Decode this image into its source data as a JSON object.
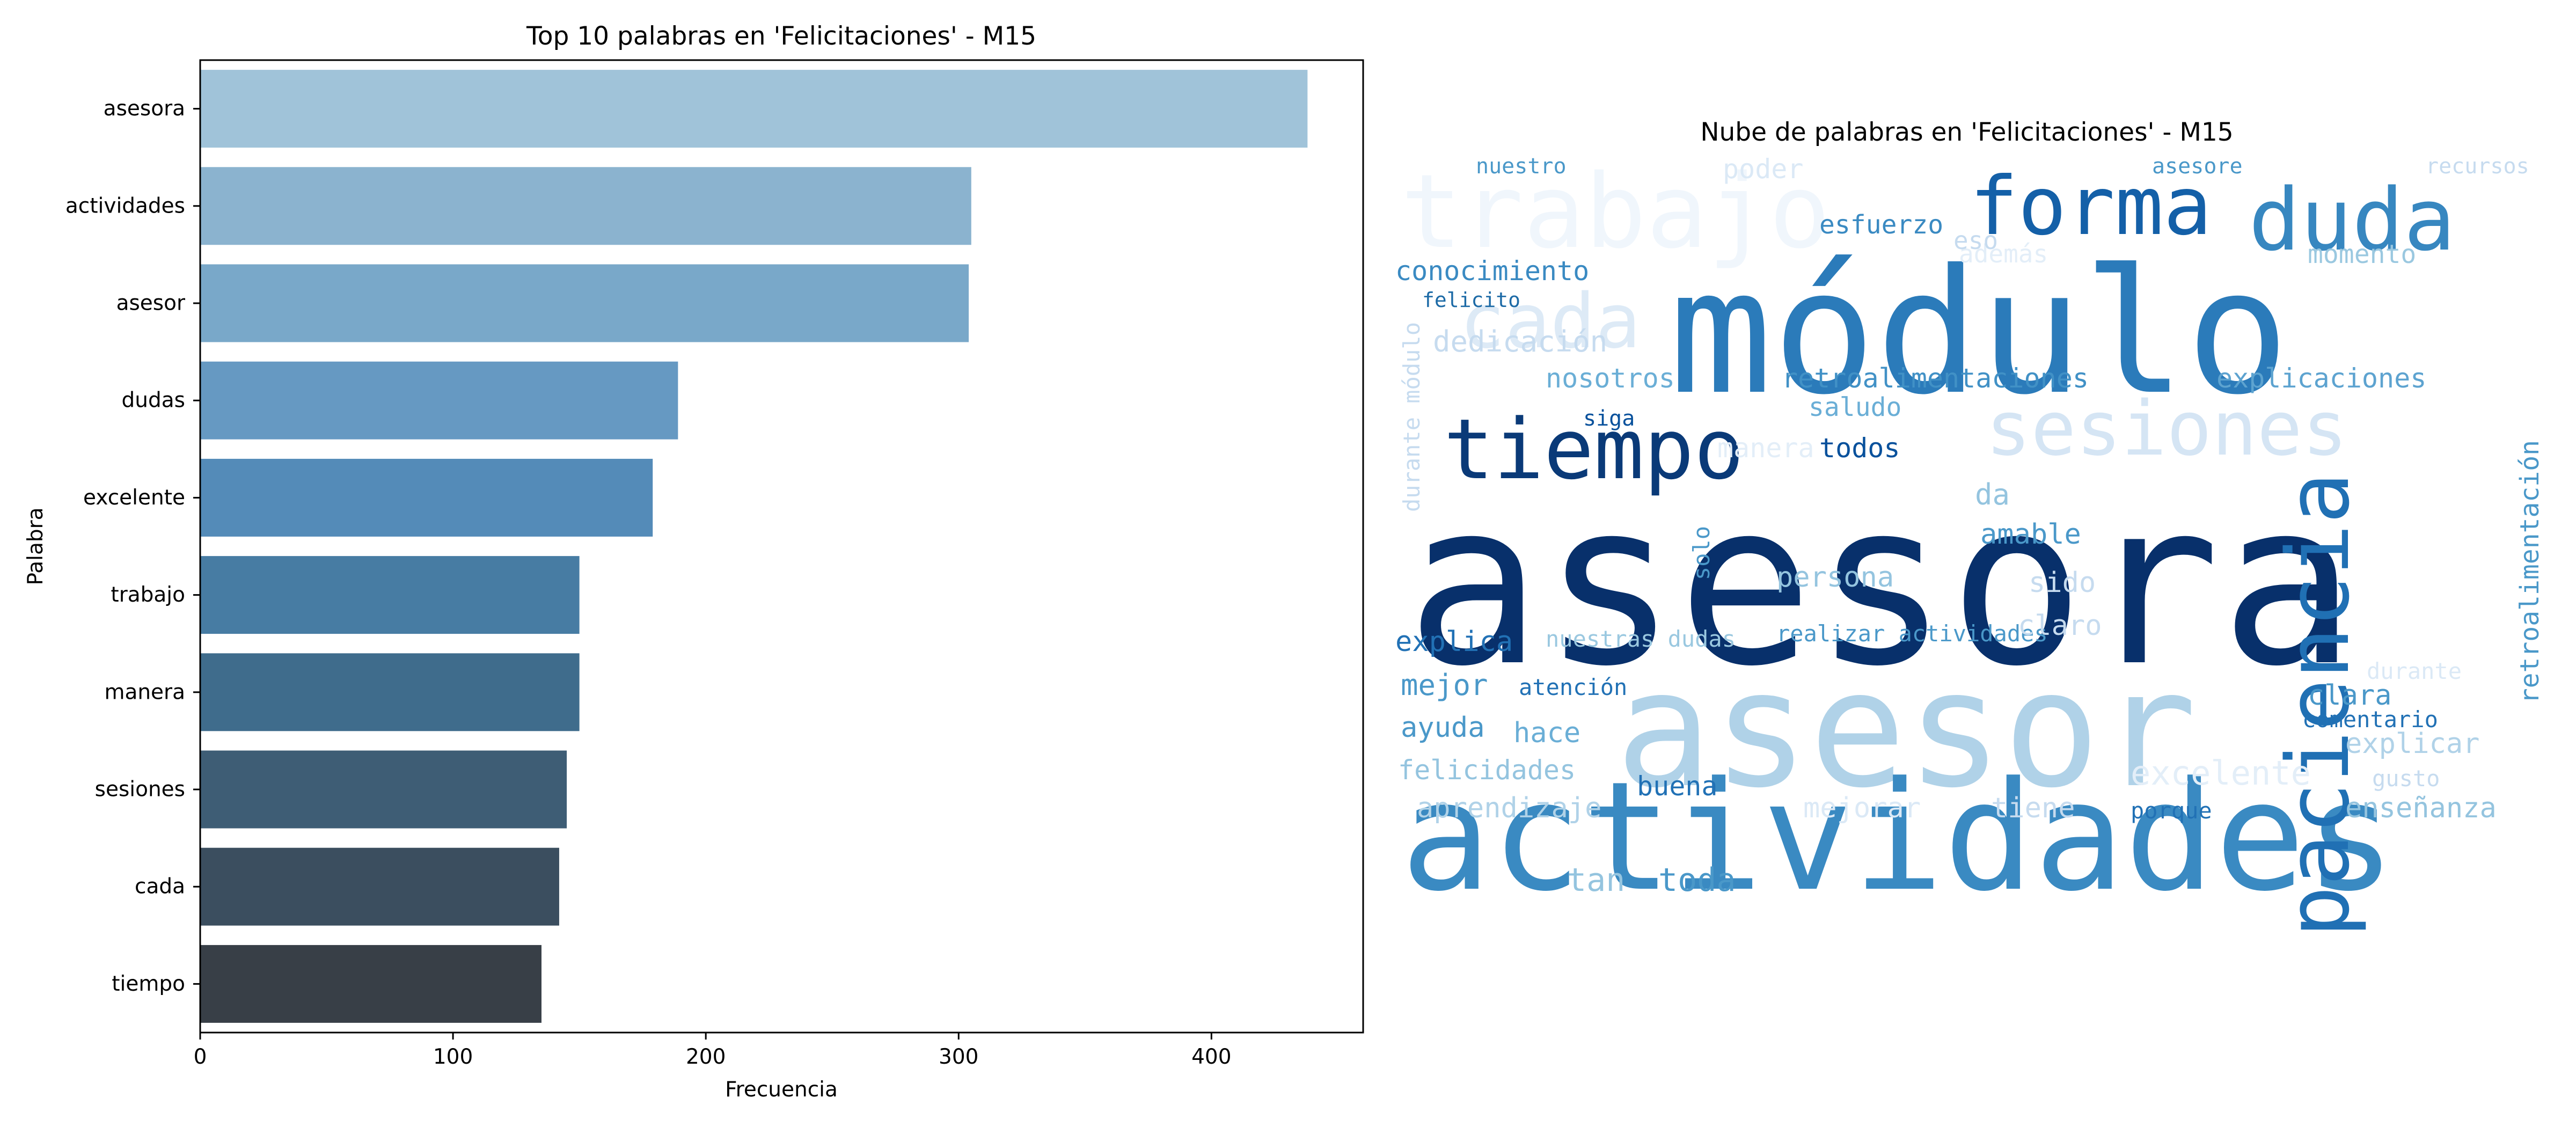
{
  "bar_chart": {
    "title": "Top 10 palabras en 'Felicitaciones' - M15",
    "xlabel": "Frecuencia",
    "ylabel": "Palabra"
  },
  "wordcloud": {
    "title": "Nube de palabras en 'Felicitaciones' - M15"
  },
  "chart_data": [
    {
      "type": "bar",
      "orientation": "horizontal",
      "title": "Top 10 palabras en 'Felicitaciones' - M15",
      "xlabel": "Frecuencia",
      "ylabel": "Palabra",
      "categories": [
        "asesora",
        "actividades",
        "asesor",
        "dudas",
        "excelente",
        "trabajo",
        "manera",
        "sesiones",
        "cada",
        "tiempo"
      ],
      "values": [
        438,
        305,
        304,
        189,
        179,
        150,
        150,
        145,
        142,
        135
      ],
      "xlim": [
        0,
        460
      ],
      "xticks": [
        0,
        100,
        200,
        300,
        400
      ],
      "grid": false,
      "colors": [
        "#a0c3d9",
        "#8bb3cf",
        "#79a8c9",
        "#6699c2",
        "#548bb8",
        "#477ca3",
        "#3f6c8c",
        "#3e5d75",
        "#3b4e5f",
        "#383f47"
      ]
    },
    {
      "type": "wordcloud",
      "title": "Nube de palabras en 'Felicitaciones' - M15",
      "colormap": "Blues",
      "words": [
        {
          "text": "asesora",
          "color": "#08306b"
        },
        {
          "text": "módulo",
          "color": "#2b7bba"
        },
        {
          "text": "asesor",
          "color": "#b0d2e8"
        },
        {
          "text": "actividades",
          "color": "#3a8ac2"
        },
        {
          "text": "trabajo",
          "color": "#f0f6fc"
        },
        {
          "text": "paciencia",
          "color": "#2070b4"
        },
        {
          "text": "forma",
          "color": "#1460a8"
        },
        {
          "text": "duda",
          "color": "#3787c0"
        },
        {
          "text": "tiempo",
          "color": "#0a3a78"
        },
        {
          "text": "sesiones",
          "color": "#d5e5f4"
        },
        {
          "text": "cada",
          "color": "#ddeaf6"
        },
        {
          "text": "retroalimentación",
          "color": "#4a98c9"
        },
        {
          "text": "esfuerzo",
          "color": "#3a8ac2"
        },
        {
          "text": "conocimiento",
          "color": "#3a8ac2"
        },
        {
          "text": "retroalimentaciones",
          "color": "#4191c6"
        },
        {
          "text": "explicaciones",
          "color": "#5da3d0"
        },
        {
          "text": "momento",
          "color": "#9ac8e0"
        },
        {
          "text": "nosotros",
          "color": "#6aaed6"
        },
        {
          "text": "dedicación",
          "color": "#c6dbef"
        },
        {
          "text": "saludo",
          "color": "#6aaed6"
        },
        {
          "text": "todos",
          "color": "#08519c"
        },
        {
          "text": "amable",
          "color": "#4a98c9"
        },
        {
          "text": "persona",
          "color": "#94c4df"
        },
        {
          "text": "explica",
          "color": "#2171b5"
        },
        {
          "text": "mejor",
          "color": "#4a98c9"
        },
        {
          "text": "atención",
          "color": "#2171b5"
        },
        {
          "text": "ayuda",
          "color": "#4a98c9"
        },
        {
          "text": "hace",
          "color": "#6aaed6"
        },
        {
          "text": "felicidades",
          "color": "#94c4df"
        },
        {
          "text": "aprendizaje",
          "color": "#b0d2e8"
        },
        {
          "text": "buena",
          "color": "#2171b5"
        },
        {
          "text": "mejorar",
          "color": "#dbe9f6"
        },
        {
          "text": "tiene",
          "color": "#c6dbef"
        },
        {
          "text": "porque",
          "color": "#2171b5"
        },
        {
          "text": "enseñanza",
          "color": "#94c4df"
        },
        {
          "text": "explicar",
          "color": "#b0d2e8"
        },
        {
          "text": "comentario",
          "color": "#2171b5"
        },
        {
          "text": "clara",
          "color": "#4a98c9"
        },
        {
          "text": "realizar actividades",
          "color": "#4a98c9"
        },
        {
          "text": "nuestras dudas",
          "color": "#9ac8e0"
        },
        {
          "text": "claro",
          "color": "#c6dbef"
        },
        {
          "text": "sido",
          "color": "#c6dbef"
        },
        {
          "text": "toda",
          "color": "#4a98c9"
        },
        {
          "text": "tan",
          "color": "#94c4df"
        },
        {
          "text": "felicito",
          "color": "#1c6aa6"
        },
        {
          "text": "nuestro",
          "color": "#4a98c9"
        },
        {
          "text": "asesore",
          "color": "#4a98c9"
        },
        {
          "text": "recursos",
          "color": "#c6dbef"
        },
        {
          "text": "poder",
          "color": "#dbe9f6"
        },
        {
          "text": "además",
          "color": "#e3eef8"
        },
        {
          "text": "eso",
          "color": "#c6dbef"
        },
        {
          "text": "durante módulo",
          "color": "#c6dbef"
        },
        {
          "text": "siga",
          "color": "#08519c"
        },
        {
          "text": "manera",
          "color": "#e3eef8"
        },
        {
          "text": "da",
          "color": "#94c4df"
        },
        {
          "text": "solo",
          "color": "#4a98c9"
        },
        {
          "text": "excelente",
          "color": "#e3eef8"
        },
        {
          "text": "gusto",
          "color": "#c6dbef"
        },
        {
          "text": "durante",
          "color": "#dbe9f6"
        }
      ]
    }
  ]
}
